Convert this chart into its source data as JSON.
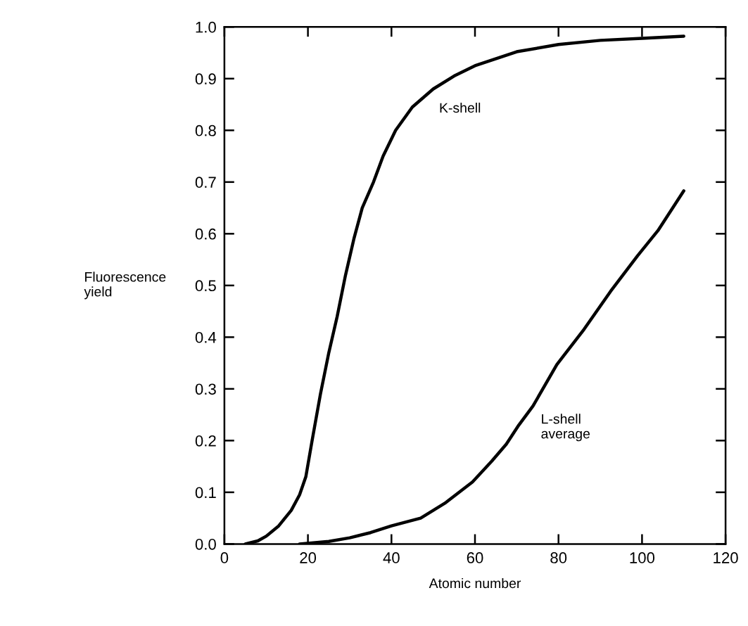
{
  "chart_data": {
    "type": "line",
    "xlabel": "Atomic number",
    "ylabel": "Fluorescence\nyield",
    "xlim": [
      0,
      120
    ],
    "xticks": [
      0,
      20,
      40,
      60,
      80,
      100,
      120
    ],
    "ylim": [
      0,
      1
    ],
    "yticks": [
      {
        "value": 0,
        "label": "0.0"
      },
      {
        "value": 0.1,
        "label": "0.1"
      },
      {
        "value": 0.2,
        "label": "0.2"
      },
      {
        "value": 0.3,
        "label": "0.3"
      },
      {
        "value": 0.4,
        "label": "0.4"
      },
      {
        "value": 0.5,
        "label": "0.5"
      },
      {
        "value": 0.6,
        "label": "0.6"
      },
      {
        "value": 0.7,
        "label": "0.7"
      },
      {
        "value": 0.8,
        "label": "0.8"
      },
      {
        "value": 0.9,
        "label": "0.9"
      },
      {
        "value": 1,
        "label": "1.0"
      }
    ],
    "grid": false,
    "marker": "none",
    "line_style": "solid",
    "series": [
      {
        "name": "K-shell",
        "color": "#000000",
        "x": [
          5,
          8,
          10,
          13,
          16,
          18,
          19.5,
          21,
          23,
          25,
          27,
          29,
          31,
          33,
          35.7,
          38,
          41,
          45,
          50,
          55,
          60,
          70,
          80,
          90,
          100,
          110
        ],
        "values": [
          0,
          0.006,
          0.015,
          0.035,
          0.065,
          0.095,
          0.13,
          0.2,
          0.29,
          0.37,
          0.44,
          0.52,
          0.59,
          0.65,
          0.7,
          0.75,
          0.8,
          0.845,
          0.88,
          0.905,
          0.925,
          0.952,
          0.966,
          0.974,
          0.978,
          0.982
        ]
      },
      {
        "name": "L-shell\naverage",
        "color": "#000000",
        "x": [
          18,
          25,
          30,
          35,
          40,
          47,
          53,
          59.4,
          64,
          67.5,
          70.5,
          73.9,
          79.6,
          86.1,
          92.5,
          98.9,
          103.8,
          110
        ],
        "values": [
          0,
          0.005,
          0.012,
          0.022,
          0.035,
          0.05,
          0.08,
          0.12,
          0.16,
          0.193,
          0.23,
          0.267,
          0.347,
          0.415,
          0.489,
          0.557,
          0.606,
          0.683
        ]
      }
    ]
  }
}
